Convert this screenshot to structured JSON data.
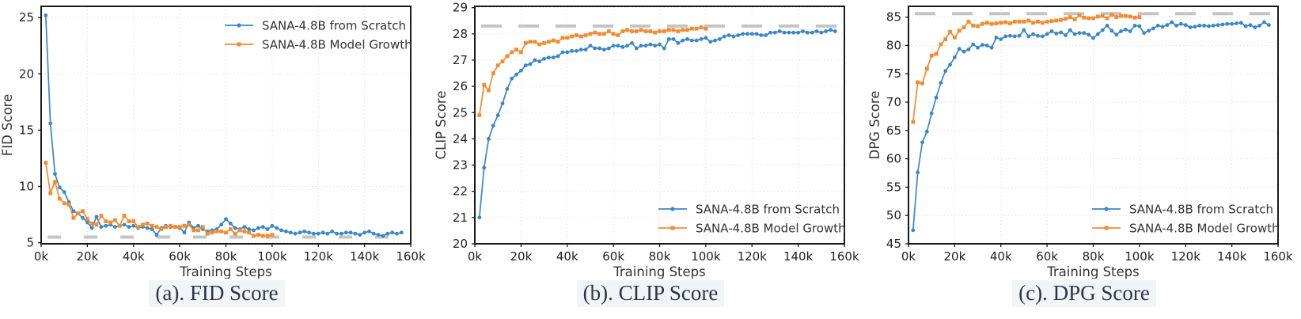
{
  "figure": {
    "xlabel": "Training Steps",
    "grid_color": "#e0e0e0",
    "frame_color": "#1a1a1a",
    "baseline_color": "#c4c4c4",
    "tick_label_color": "#222222",
    "axis_label_color": "#333333",
    "legend_text_color": "#333333",
    "caption_color": "#2c3547",
    "caption_bg": "#f2f5f8"
  },
  "chart_data": [
    {
      "type": "line",
      "title": "(a). FID Score",
      "xlabel": "Training Steps",
      "ylabel": "FID Score",
      "xlim": [
        0,
        160
      ],
      "ylim": [
        4.9,
        26.0
      ],
      "xticks": [
        0,
        20,
        40,
        60,
        80,
        100,
        120,
        140,
        160
      ],
      "xtick_labels": [
        "0k",
        "20k",
        "40k",
        "60k",
        "80k",
        "100k",
        "120k",
        "140k",
        "160k"
      ],
      "yticks": [
        5,
        10,
        15,
        20,
        25
      ],
      "grid": true,
      "baseline": 5.5,
      "baseline_style": "short-dash",
      "legend_position": "top-right",
      "series": [
        {
          "name": "SANA-4.8B from Scratch",
          "color": "#3a87c8",
          "marker": "circle",
          "x": [
            2,
            4,
            6,
            8,
            10,
            12,
            14,
            16,
            18,
            20,
            22,
            24,
            26,
            28,
            30,
            32,
            34,
            36,
            38,
            40,
            42,
            44,
            46,
            48,
            50,
            52,
            54,
            56,
            58,
            60,
            62,
            64,
            66,
            68,
            70,
            72,
            74,
            76,
            78,
            80,
            82,
            84,
            86,
            88,
            90,
            92,
            94,
            96,
            98,
            100,
            102,
            104,
            106,
            108,
            110,
            112,
            114,
            116,
            118,
            120,
            122,
            124,
            126,
            128,
            130,
            132,
            134,
            136,
            138,
            140,
            142,
            144,
            146,
            148,
            150,
            152,
            154,
            156
          ],
          "y": [
            25.2,
            15.6,
            11.1,
            9.9,
            9.5,
            8.6,
            7.8,
            7.6,
            7.2,
            6.8,
            6.3,
            7.3,
            6.4,
            6.5,
            6.6,
            6.4,
            6.5,
            6.6,
            6.4,
            6.5,
            6.3,
            6.4,
            6.3,
            6.2,
            5.7,
            6.3,
            6.5,
            6.4,
            6.4,
            6.3,
            5.9,
            6.8,
            6.3,
            6.5,
            6.2,
            6.0,
            6.1,
            6.2,
            6.6,
            7.1,
            6.7,
            6.3,
            6.2,
            6.4,
            6.2,
            6.1,
            6.3,
            6.4,
            6.2,
            6.5,
            6.3,
            6.1,
            6.0,
            5.9,
            5.8,
            5.9,
            6.0,
            5.9,
            5.8,
            5.8,
            5.9,
            5.8,
            6.0,
            5.8,
            5.8,
            5.9,
            5.9,
            5.8,
            5.7,
            5.9,
            6.0,
            5.8,
            5.7,
            5.6,
            5.8,
            5.9,
            5.8,
            5.9
          ]
        },
        {
          "name": "SANA-4.8B Model Growth",
          "color": "#f18c34",
          "marker": "square",
          "x": [
            2,
            4,
            6,
            8,
            10,
            12,
            14,
            16,
            18,
            20,
            22,
            24,
            26,
            28,
            30,
            32,
            34,
            36,
            38,
            40,
            42,
            44,
            46,
            48,
            50,
            52,
            54,
            56,
            58,
            60,
            62,
            64,
            66,
            68,
            70,
            72,
            74,
            76,
            78,
            80,
            82,
            84,
            86,
            88,
            90,
            92,
            94,
            96,
            98,
            100
          ],
          "y": [
            12.1,
            9.4,
            10.4,
            8.9,
            8.5,
            8.4,
            7.2,
            7.6,
            7.8,
            7.1,
            6.7,
            6.6,
            7.4,
            6.9,
            6.8,
            7.0,
            6.5,
            7.4,
            6.9,
            6.9,
            6.4,
            6.6,
            6.7,
            6.5,
            6.4,
            6.2,
            6.4,
            6.5,
            6.4,
            6.4,
            6.5,
            6.6,
            6.1,
            6.1,
            6.4,
            5.8,
            5.9,
            6.0,
            6.0,
            5.9,
            6.2,
            5.8,
            6.1,
            6.0,
            5.9,
            5.6,
            5.7,
            5.6,
            5.6,
            5.7
          ]
        }
      ]
    },
    {
      "type": "line",
      "title": "(b). CLIP Score",
      "xlabel": "Training Steps",
      "ylabel": "CLIP Score",
      "xlim": [
        0,
        160
      ],
      "ylim": [
        20,
        29.05
      ],
      "xticks": [
        0,
        20,
        40,
        60,
        80,
        100,
        120,
        140,
        160
      ],
      "xtick_labels": [
        "0k",
        "20k",
        "40k",
        "60k",
        "80k",
        "100k",
        "120k",
        "140k",
        "160k"
      ],
      "yticks": [
        20,
        21,
        22,
        23,
        24,
        25,
        26,
        27,
        28,
        29
      ],
      "grid": true,
      "baseline": 28.3,
      "baseline_style": "long-dash",
      "legend_position": "bottom-right",
      "series": [
        {
          "name": "SANA-4.8B from Scratch",
          "color": "#3a87c8",
          "marker": "circle",
          "x": [
            2,
            4,
            6,
            8,
            10,
            12,
            14,
            16,
            18,
            20,
            22,
            24,
            26,
            28,
            30,
            32,
            34,
            36,
            38,
            40,
            42,
            44,
            46,
            48,
            50,
            52,
            54,
            56,
            58,
            60,
            62,
            64,
            66,
            68,
            70,
            72,
            74,
            76,
            78,
            80,
            82,
            84,
            86,
            88,
            90,
            92,
            94,
            96,
            98,
            100,
            102,
            104,
            106,
            108,
            110,
            112,
            114,
            116,
            118,
            120,
            122,
            124,
            126,
            128,
            130,
            132,
            134,
            136,
            138,
            140,
            142,
            144,
            146,
            148,
            150,
            152,
            154,
            156
          ],
          "y": [
            21.0,
            22.9,
            24.0,
            24.5,
            24.9,
            25.35,
            25.9,
            26.3,
            26.45,
            26.6,
            26.8,
            26.85,
            27.0,
            26.95,
            27.05,
            27.1,
            27.1,
            27.15,
            27.3,
            27.3,
            27.35,
            27.35,
            27.4,
            27.4,
            27.55,
            27.45,
            27.45,
            27.4,
            27.45,
            27.55,
            27.55,
            27.5,
            27.55,
            27.65,
            27.45,
            27.55,
            27.55,
            27.6,
            27.55,
            27.6,
            27.45,
            27.8,
            27.8,
            27.65,
            27.75,
            27.8,
            27.75,
            27.75,
            27.8,
            27.85,
            27.7,
            27.75,
            27.8,
            27.9,
            27.95,
            27.9,
            27.95,
            28.0,
            28.0,
            28.0,
            28.0,
            27.95,
            27.95,
            28.05,
            28.05,
            28.1,
            28.05,
            28.05,
            28.05,
            28.05,
            28.1,
            28.05,
            28.05,
            28.1,
            28.05,
            28.1,
            28.15,
            28.1
          ]
        },
        {
          "name": "SANA-4.8B Model Growth",
          "color": "#f18c34",
          "marker": "square",
          "x": [
            2,
            4,
            6,
            8,
            10,
            12,
            14,
            16,
            18,
            20,
            22,
            24,
            26,
            28,
            30,
            32,
            34,
            36,
            38,
            40,
            42,
            44,
            46,
            48,
            50,
            52,
            54,
            56,
            58,
            60,
            62,
            64,
            66,
            68,
            70,
            72,
            74,
            76,
            78,
            80,
            82,
            84,
            86,
            88,
            90,
            92,
            94,
            96,
            98,
            100
          ],
          "y": [
            24.9,
            26.05,
            25.85,
            26.5,
            26.8,
            26.95,
            27.15,
            27.3,
            27.4,
            27.3,
            27.65,
            27.7,
            27.7,
            27.6,
            27.65,
            27.7,
            27.75,
            27.7,
            27.85,
            27.85,
            27.9,
            27.95,
            27.9,
            27.95,
            28.0,
            28.05,
            28.0,
            28.0,
            28.1,
            28.0,
            27.95,
            28.1,
            28.15,
            28.1,
            28.1,
            28.15,
            28.1,
            28.1,
            28.05,
            28.1,
            28.1,
            28.15,
            28.15,
            28.1,
            28.15,
            28.15,
            28.2,
            28.2,
            28.25,
            28.2
          ]
        }
      ]
    },
    {
      "type": "line",
      "title": "(c). DPG Score",
      "xlabel": "Training Steps",
      "ylabel": "DPG Score",
      "xlim": [
        0,
        160
      ],
      "ylim": [
        45,
        86.9
      ],
      "xticks": [
        0,
        20,
        40,
        60,
        80,
        100,
        120,
        140,
        160
      ],
      "xtick_labels": [
        "0k",
        "20k",
        "40k",
        "60k",
        "80k",
        "100k",
        "120k",
        "140k",
        "160k"
      ],
      "yticks": [
        45,
        50,
        55,
        60,
        65,
        70,
        75,
        80,
        85
      ],
      "grid": true,
      "baseline": 85.6,
      "baseline_style": "long-dash",
      "legend_position": "bottom-right",
      "series": [
        {
          "name": "SANA-4.8B from Scratch",
          "color": "#3a87c8",
          "marker": "circle",
          "x": [
            2,
            4,
            6,
            8,
            10,
            12,
            14,
            16,
            18,
            20,
            22,
            24,
            26,
            28,
            30,
            32,
            34,
            36,
            38,
            40,
            42,
            44,
            46,
            48,
            50,
            52,
            54,
            56,
            58,
            60,
            62,
            64,
            66,
            68,
            70,
            72,
            74,
            76,
            78,
            80,
            82,
            84,
            86,
            88,
            90,
            92,
            94,
            96,
            98,
            100,
            102,
            104,
            106,
            108,
            110,
            112,
            114,
            116,
            118,
            120,
            122,
            124,
            126,
            128,
            130,
            132,
            134,
            136,
            138,
            140,
            142,
            144,
            146,
            148,
            150,
            152,
            154,
            156
          ],
          "y": [
            47.4,
            57.6,
            62.9,
            64.8,
            68.0,
            70.8,
            73.4,
            75.5,
            76.6,
            77.9,
            79.4,
            78.9,
            79.3,
            80.2,
            79.6,
            80.1,
            80.0,
            79.6,
            81.4,
            81.1,
            81.6,
            81.7,
            81.6,
            81.7,
            82.7,
            81.6,
            82.0,
            81.7,
            81.6,
            82.0,
            82.5,
            82.1,
            82.3,
            81.8,
            82.7,
            82.0,
            82.2,
            82.2,
            81.9,
            81.3,
            82.0,
            82.7,
            83.5,
            82.6,
            81.9,
            82.5,
            82.8,
            82.5,
            83.5,
            83.4,
            82.2,
            82.6,
            83.0,
            83.5,
            83.3,
            83.6,
            84.1,
            83.5,
            83.8,
            83.6,
            83.2,
            83.3,
            83.5,
            83.5,
            83.4,
            83.5,
            83.6,
            83.7,
            83.8,
            83.8,
            83.9,
            84.0,
            83.4,
            83.6,
            83.2,
            83.5,
            84.1,
            83.6
          ]
        },
        {
          "name": "SANA-4.8B Model Growth",
          "color": "#f18c34",
          "marker": "square",
          "x": [
            2,
            4,
            6,
            8,
            10,
            12,
            14,
            16,
            18,
            20,
            22,
            24,
            26,
            28,
            30,
            32,
            34,
            36,
            38,
            40,
            42,
            44,
            46,
            48,
            50,
            52,
            54,
            56,
            58,
            60,
            62,
            64,
            66,
            68,
            70,
            72,
            74,
            76,
            78,
            80,
            82,
            84,
            86,
            88,
            90,
            92,
            94,
            96,
            98,
            100
          ],
          "y": [
            66.5,
            73.5,
            73.3,
            75.9,
            78.2,
            78.5,
            80.2,
            81.1,
            82.4,
            81.4,
            82.6,
            83.2,
            84.2,
            83.5,
            83.4,
            83.8,
            84.0,
            83.8,
            83.9,
            84.0,
            84.1,
            83.9,
            84.2,
            84.2,
            84.2,
            84.4,
            84.0,
            84.2,
            84.0,
            84.2,
            84.3,
            84.4,
            84.5,
            84.7,
            85.0,
            84.6,
            85.3,
            84.9,
            84.8,
            84.8,
            85.1,
            85.2,
            84.8,
            85.4,
            85.0,
            85.2,
            85.2,
            85.1,
            84.9,
            85.0
          ]
        }
      ]
    }
  ]
}
